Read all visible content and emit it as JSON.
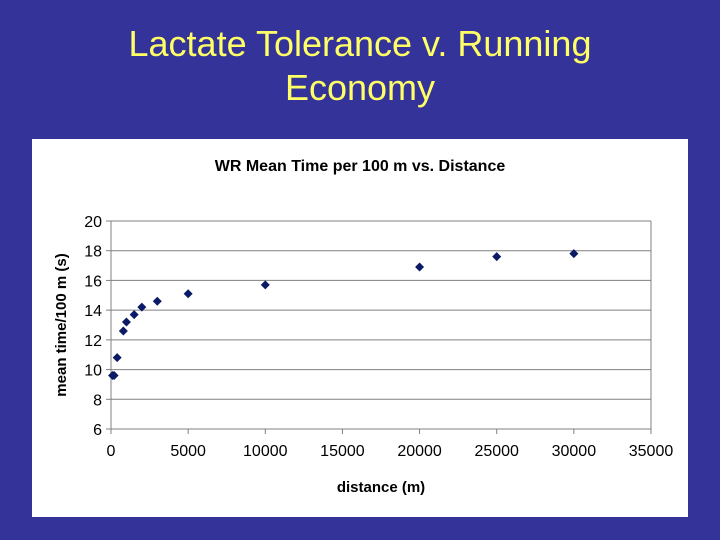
{
  "slide": {
    "title_line1": "Lactate Tolerance v. Running",
    "title_line2": "Economy"
  },
  "colors": {
    "background": "#333399",
    "title": "#FFFF66",
    "marker": "#0B1A66",
    "axis": "#808080"
  },
  "chart_data": {
    "type": "scatter",
    "title": "WR Mean Time per 100 m vs. Distance",
    "xlabel": "distance (m)",
    "ylabel": "mean time/100 m (s)",
    "xlim": [
      0,
      35000
    ],
    "ylim": [
      6,
      20
    ],
    "xticks": [
      0,
      5000,
      10000,
      15000,
      20000,
      25000,
      30000,
      35000
    ],
    "yticks": [
      6,
      8,
      10,
      12,
      14,
      16,
      18,
      20
    ],
    "grid": "horizontal",
    "legend": "none",
    "series": [
      {
        "name": "WR mean time",
        "x": [
          100,
          200,
          400,
          800,
          1000,
          1500,
          2000,
          3000,
          5000,
          10000,
          20000,
          25000,
          30000
        ],
        "y": [
          9.6,
          9.6,
          10.8,
          12.6,
          13.2,
          13.7,
          14.2,
          14.6,
          15.1,
          15.7,
          16.9,
          17.6,
          17.8
        ]
      }
    ]
  }
}
